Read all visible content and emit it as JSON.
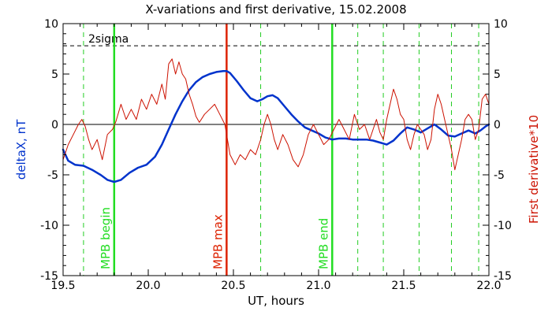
{
  "chart_data": {
    "type": "line",
    "title": "X-variations and first derivative, 15.02.2008",
    "xlabel": "UT, hours",
    "ylabel_left": "deltaX, nT",
    "ylabel_right": "First derivative*10",
    "xlim": [
      19.5,
      22.0
    ],
    "ylim_left": [
      -15,
      10
    ],
    "ylim_right": [
      -15,
      10
    ],
    "x_ticks": [
      19.5,
      20.0,
      20.5,
      21.0,
      21.5,
      22.0
    ],
    "x_tick_labels": [
      "19.5",
      "20.0",
      "20.5",
      "21.0",
      "21.5",
      "22.0"
    ],
    "y_ticks": [
      10,
      5,
      0,
      -5,
      -10,
      -15
    ],
    "y_tick_labels": [
      "10",
      "5",
      "0",
      "-5",
      "-10",
      "-15"
    ],
    "colors": {
      "deltaX": "#0033cc",
      "derivative": "#cc1100",
      "mpb_begin_end": "#22dd22",
      "mpb_max": "#dd2200",
      "minor_markers": "#22cc22"
    },
    "reference_lines": {
      "zero": 0,
      "two_sigma": {
        "value": 7.8,
        "label": "2sigma"
      }
    },
    "events": [
      {
        "x": 19.8,
        "label": "MPB begin",
        "kind": "begin_end"
      },
      {
        "x": 20.46,
        "label": "MPB max",
        "kind": "max"
      },
      {
        "x": 21.08,
        "label": "MPB end",
        "kind": "begin_end"
      }
    ],
    "dashed_markers_x": [
      19.62,
      20.66,
      21.23,
      21.38,
      21.59,
      21.78,
      21.94
    ],
    "series": [
      {
        "key": "deltaX",
        "axis": "left",
        "x": [
          19.5,
          19.53,
          19.57,
          19.62,
          19.67,
          19.72,
          19.76,
          19.8,
          19.84,
          19.89,
          19.94,
          19.99,
          20.04,
          20.08,
          20.12,
          20.16,
          20.2,
          20.24,
          20.28,
          20.32,
          20.36,
          20.4,
          20.44,
          20.46,
          20.48,
          20.52,
          20.56,
          20.6,
          20.64,
          20.67,
          20.7,
          20.73,
          20.76,
          20.8,
          20.84,
          20.88,
          20.92,
          20.96,
          21.0,
          21.04,
          21.08,
          21.12,
          21.16,
          21.2,
          21.24,
          21.28,
          21.32,
          21.36,
          21.4,
          21.44,
          21.48,
          21.52,
          21.56,
          21.6,
          21.64,
          21.68,
          21.72,
          21.76,
          21.8,
          21.84,
          21.88,
          21.92,
          21.95,
          21.98,
          22.0
        ],
        "y": [
          -2.5,
          -3.6,
          -4.0,
          -4.1,
          -4.5,
          -5.0,
          -5.5,
          -5.7,
          -5.5,
          -4.8,
          -4.3,
          -4.0,
          -3.2,
          -2.0,
          -0.5,
          1.0,
          2.3,
          3.4,
          4.2,
          4.7,
          5.0,
          5.2,
          5.3,
          5.3,
          5.1,
          4.3,
          3.4,
          2.6,
          2.3,
          2.5,
          2.8,
          2.9,
          2.6,
          1.8,
          1.0,
          0.3,
          -0.3,
          -0.6,
          -0.9,
          -1.3,
          -1.5,
          -1.4,
          -1.4,
          -1.5,
          -1.5,
          -1.5,
          -1.6,
          -1.8,
          -2.0,
          -1.6,
          -0.9,
          -0.3,
          -0.5,
          -0.8,
          -0.4,
          0.0,
          -0.5,
          -1.1,
          -1.2,
          -0.9,
          -0.6,
          -0.9,
          -0.6,
          -0.2,
          0.0
        ]
      },
      {
        "key": "derivative",
        "axis": "right",
        "x": [
          19.5,
          19.53,
          19.56,
          19.59,
          19.61,
          19.63,
          19.65,
          19.67,
          19.7,
          19.73,
          19.76,
          19.79,
          19.81,
          19.84,
          19.87,
          19.9,
          19.93,
          19.96,
          19.99,
          20.02,
          20.05,
          20.08,
          20.1,
          20.12,
          20.14,
          20.16,
          20.18,
          20.2,
          20.22,
          20.24,
          20.26,
          20.28,
          20.3,
          20.33,
          20.36,
          20.39,
          20.42,
          20.45,
          20.48,
          20.51,
          20.54,
          20.57,
          20.6,
          20.63,
          20.66,
          20.68,
          20.7,
          20.72,
          20.74,
          20.76,
          20.79,
          20.82,
          20.85,
          20.88,
          20.91,
          20.94,
          20.97,
          21.0,
          21.03,
          21.06,
          21.09,
          21.12,
          21.15,
          21.18,
          21.21,
          21.24,
          21.27,
          21.3,
          21.32,
          21.34,
          21.36,
          21.38,
          21.4,
          21.42,
          21.44,
          21.46,
          21.48,
          21.5,
          21.52,
          21.54,
          21.56,
          21.58,
          21.6,
          21.62,
          21.64,
          21.66,
          21.68,
          21.7,
          21.72,
          21.74,
          21.76,
          21.78,
          21.8,
          21.82,
          21.84,
          21.86,
          21.88,
          21.9,
          21.92,
          21.94,
          21.96,
          21.98,
          22.0
        ],
        "y": [
          -3.5,
          -2.0,
          -1.0,
          0.0,
          0.5,
          -0.2,
          -1.5,
          -2.5,
          -1.5,
          -3.5,
          -1.0,
          -0.5,
          0.3,
          2.0,
          0.5,
          1.5,
          0.5,
          2.5,
          1.5,
          3.0,
          2.0,
          4.0,
          2.5,
          6.0,
          6.5,
          5.0,
          6.2,
          5.0,
          4.5,
          3.0,
          2.0,
          0.8,
          0.2,
          1.0,
          1.5,
          2.0,
          1.0,
          0.0,
          -3.0,
          -4.0,
          -3.0,
          -3.5,
          -2.5,
          -3.0,
          -1.5,
          0.0,
          1.0,
          0.0,
          -1.5,
          -2.5,
          -1.0,
          -2.0,
          -3.5,
          -4.2,
          -3.0,
          -1.0,
          0.0,
          -1.0,
          -2.0,
          -1.5,
          -0.5,
          0.5,
          -0.5,
          -1.5,
          1.0,
          -0.5,
          0.0,
          -1.5,
          -0.5,
          0.5,
          -0.8,
          -1.5,
          0.5,
          2.0,
          3.5,
          2.5,
          1.0,
          0.5,
          -1.5,
          -2.5,
          -1.0,
          0.0,
          -0.5,
          -1.0,
          -2.5,
          -1.5,
          1.5,
          3.0,
          2.0,
          0.5,
          -1.0,
          -2.5,
          -4.5,
          -3.0,
          -1.5,
          0.5,
          1.0,
          0.5,
          -1.5,
          -0.5,
          2.5,
          3.0,
          2.0
        ]
      }
    ]
  }
}
